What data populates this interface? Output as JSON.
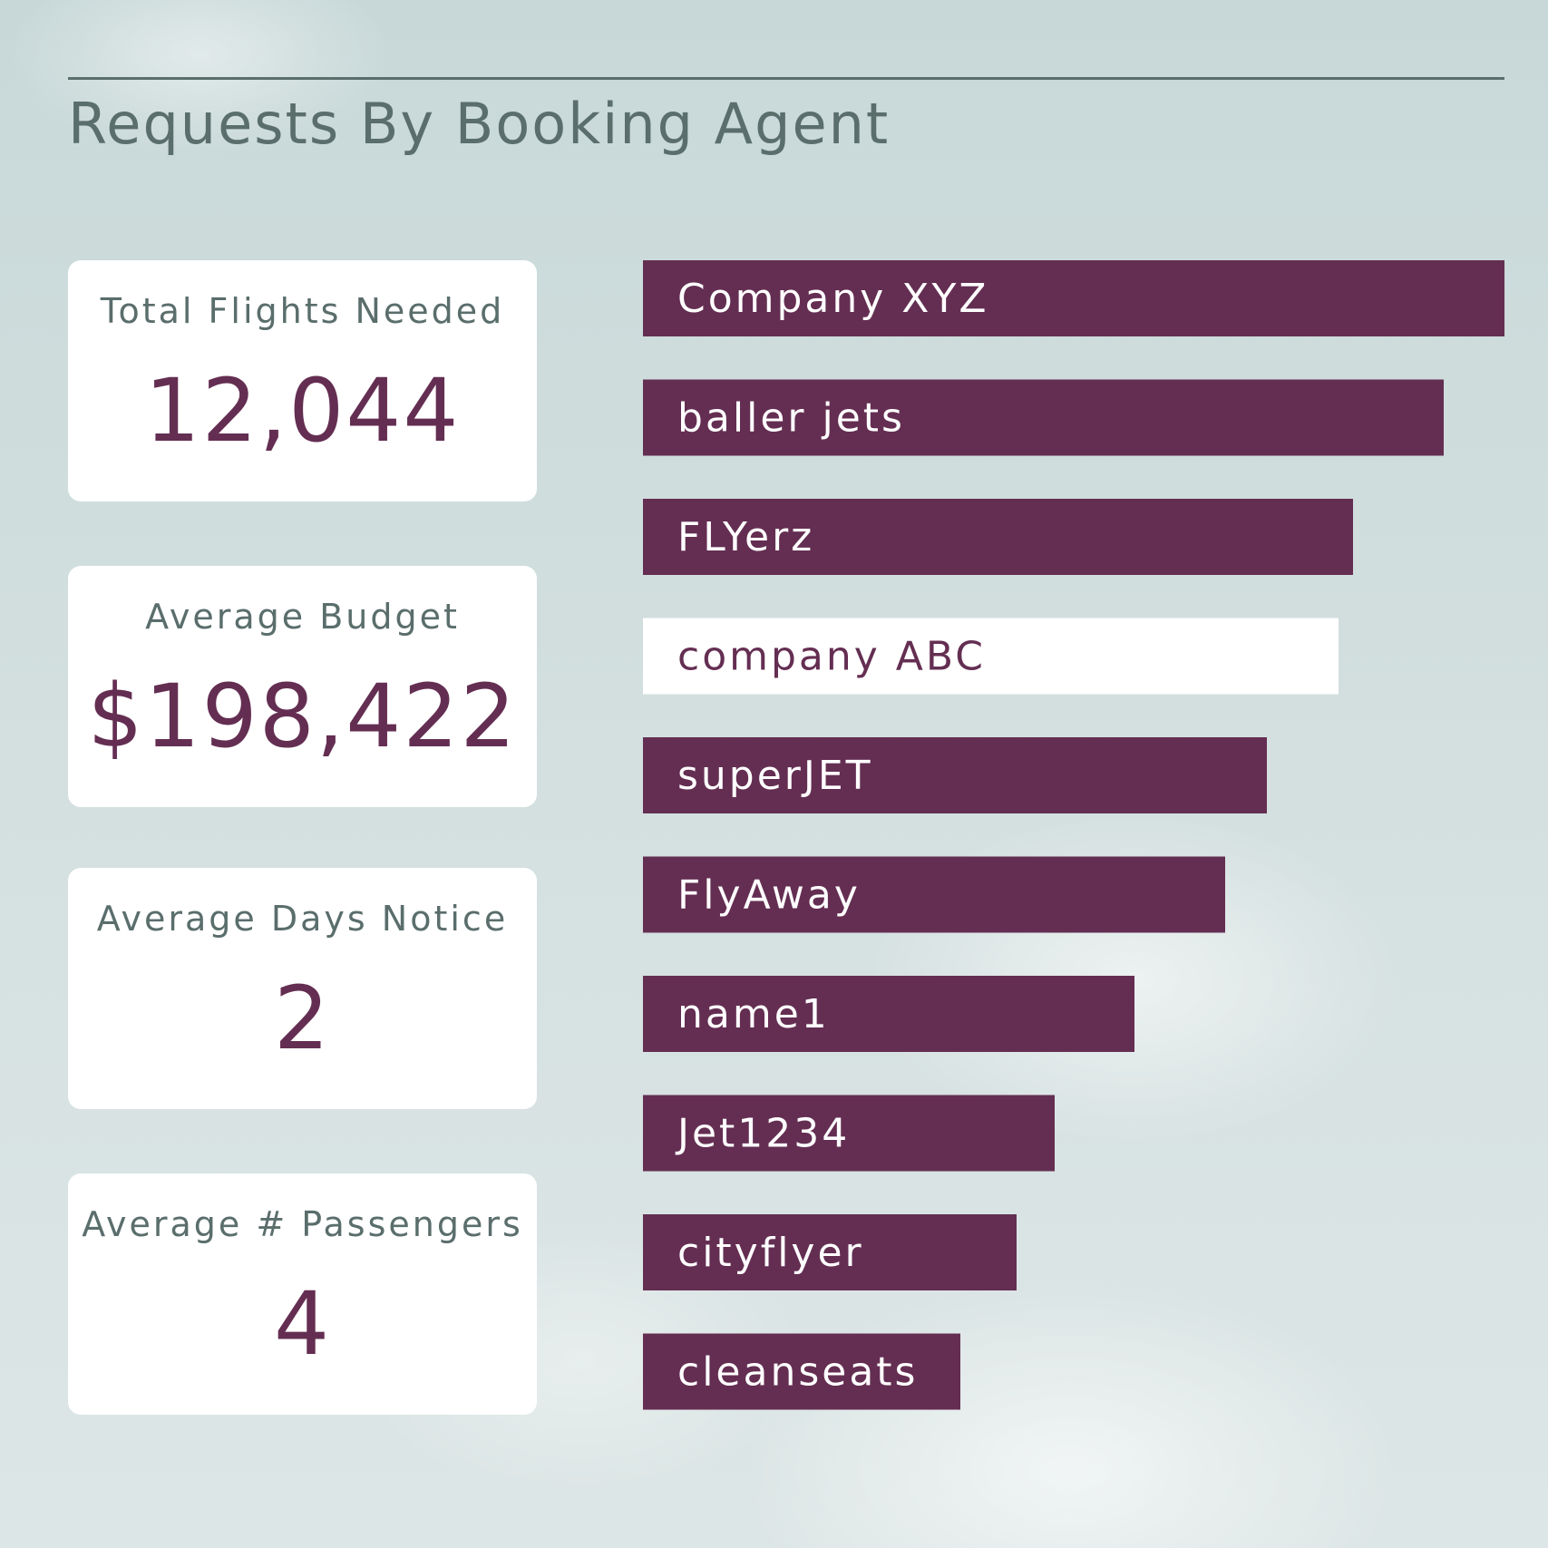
{
  "header": {
    "title": "Requests By Booking Agent"
  },
  "kpis": [
    {
      "label": "Total Flights Needed",
      "value": "12,044"
    },
    {
      "label": "Average Budget",
      "value": "$198,422"
    },
    {
      "label": "Average Days Notice",
      "value": "2"
    },
    {
      "label": "Average # Passengers",
      "value": "4"
    }
  ],
  "colors": {
    "bar": "#642e52",
    "bar_highlight": "#ffffff",
    "label_on_bar": "#ffffff",
    "label_on_highlight": "#642e52",
    "title": "#5a6e6c"
  },
  "chart_data": {
    "type": "bar",
    "orientation": "horizontal",
    "title": "Requests By Booking Agent",
    "categories": [
      "Company XYZ",
      "baller jets",
      "FLYerz",
      "company ABC",
      "superJET",
      "FlyAway",
      "name1",
      "Jet1234",
      "cityflyer",
      "cleanseats"
    ],
    "values": [
      950,
      883,
      783,
      767,
      688,
      642,
      542,
      454,
      412,
      350
    ],
    "highlight": "company ABC",
    "xlim": [
      0,
      950
    ],
    "axes_visible": false,
    "grid": false,
    "legend": "none"
  }
}
